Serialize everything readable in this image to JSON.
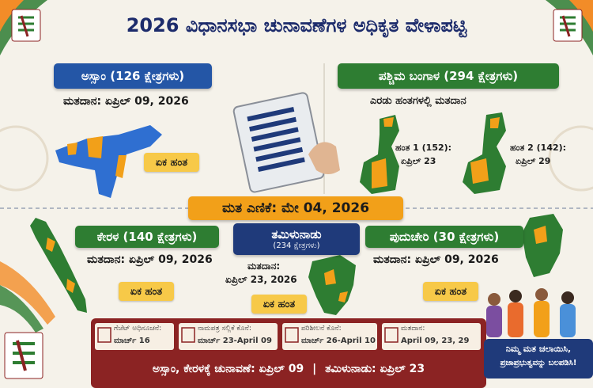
{
  "header": {
    "title": "2026 ವಿಧಾನಸಭಾ ಚುನಾವಣೆಗಳ ಅಧಿಕೃತ ವೇಳಾಪಟ್ಟಿ"
  },
  "assam": {
    "title": "ಅಸ್ಸಾಂ (126 ಕ್ಷೇತ್ರಗಳು)",
    "polling": "ಮತದಾನ: ಏಪ್ರಿಲ್ 09, 2026",
    "phase": "ಏಕ ಹಂತ"
  },
  "west_bengal": {
    "title": "ಪಶ್ಚಿಮ ಬಂಗಾಳ (294 ಕ್ಷೇತ್ರಗಳು)",
    "subtitle": "ಎರಡು ಹಂತಗಳಲ್ಲಿ ಮತದಾನ",
    "phase_1_label": "ಹಂತ 1 (152):",
    "phase_1_date": "ಏಪ್ರಿಲ್ 23",
    "phase_2_label": "ಹಂತ 2 (142):",
    "phase_2_date": "ಏಪ್ರಿಲ್ 29"
  },
  "counting": {
    "label": "ಮತ ಎಣಿಕೆ: ಮೇ 04, 2026"
  },
  "kerala": {
    "title": "ಕೇರಳ (140 ಕ್ಷೇತ್ರಗಳು)",
    "polling": "ಮತದಾನ: ಏಪ್ರಿಲ್ 09, 2026",
    "phase": "ಏಕ ಹಂತ"
  },
  "tamil_nadu": {
    "title": "ತಮಿಳುನಾಡು",
    "seats": "(234 ಕ್ಷೇತ್ರಗಳು)",
    "polling_label": "ಮತದಾನ:",
    "polling_date": "ಏಪ್ರಿಲ್ 23, 2026",
    "phase": "ಏಕ ಹಂತ"
  },
  "puducherry": {
    "title": "ಪುದುಚೇರಿ (30 ಕ್ಷೇತ್ರಗಳು)",
    "polling": "ಮತದಾನ: ಏಪ್ರಿಲ್ 09, 2026",
    "phase": "ಏಕ ಹಂತ"
  },
  "timeline": {
    "items": [
      {
        "label": "ಗೆಜೆಟ್ ಅಧಿಸೂಚನೆ:",
        "date": "ಮಾರ್ಚ್ 16"
      },
      {
        "label": "ನಾಮಪತ್ರ ಸಲ್ಲಿಕೆ ಕೊನೆ:",
        "date": "ಮಾರ್ಚ್ 23-April 09"
      },
      {
        "label": "ಪರಿಶೀಲನೆ ಕೊನೆ:",
        "date": "ಮಾರ್ಚ್ 26-April 10"
      },
      {
        "label": "ಮತದಾನ:",
        "date": "April 09, 23, 29"
      }
    ]
  },
  "footer": {
    "summary_1": "ಅಸ್ಸಾಂ, ಕೇರಳಕ್ಕೆ ಚುನಾವಣೆ: ಏಪ್ರಿಲ್ 09",
    "summary_2": "ತಮಿಳುನಾಡು: ಏಪ್ರಿಲ್ 23"
  },
  "slogan": {
    "line_1": "ನಿಮ್ಮ ಮತ ಚಲಾಯಿಸಿ,",
    "line_2": "ಪ್ರಜಾಪ್ರಭುತ್ವವನ್ನು ಬಲಪಡಿಸಿ!"
  }
}
